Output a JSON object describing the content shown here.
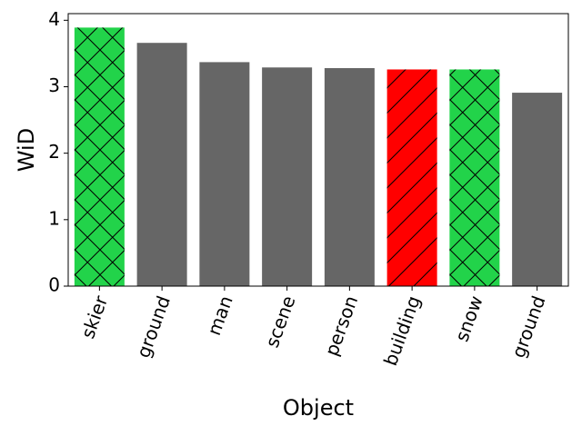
{
  "chart_data": {
    "type": "bar",
    "xlabel": "Object",
    "ylabel": "WiD",
    "categories": [
      "skier",
      "ground",
      "man",
      "scene",
      "person",
      "building",
      "snow",
      "ground"
    ],
    "values": [
      3.89,
      3.66,
      3.37,
      3.29,
      3.28,
      3.26,
      3.26,
      2.91
    ],
    "colors": [
      "#22d34a",
      "#666666",
      "#666666",
      "#666666",
      "#666666",
      "#ff0000",
      "#22d34a",
      "#666666"
    ],
    "hatches": [
      "x",
      null,
      null,
      null,
      null,
      "/",
      "x",
      null
    ],
    "ylim": [
      0,
      4.1
    ],
    "yticks": [
      0,
      1,
      2,
      3,
      4
    ],
    "grid": false
  }
}
